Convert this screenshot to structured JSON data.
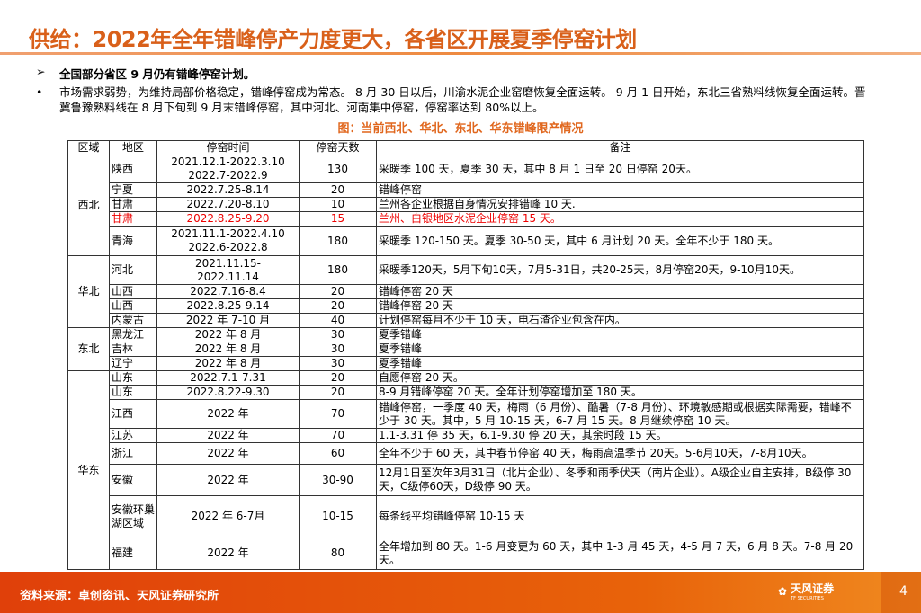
{
  "title": "供给：2022年全年错峰停产力度更大，各省区开展夏季停窑计划",
  "bullets": [
    {
      "marker": "➢",
      "text": "全国部分省区 9 月仍有错峰停窑计划。"
    },
    {
      "marker": "•",
      "text": "市场需求弱势，为维持局部价格稳定，错峰停窑成为常态。 8 月 30 日以后，川渝水泥企业窑磨恢复全面运转。 9 月 1 日开始，东北三省熟料线恢复全面运转。晋冀鲁豫熟料线在 8 月下旬到 9 月末错峰停窑，其中河北、河南集中停窑，停窑率达到 80%以上。"
    }
  ],
  "caption": "图：当前西北、华北、东北、华东错峰限产情况",
  "table": {
    "headers": [
      "区域",
      "地区",
      "停窑时间",
      "停窑天数",
      "备注"
    ],
    "groups": [
      "西北",
      "华北",
      "东北",
      "华东"
    ],
    "rows": [
      [
        "陕西",
        "2021.12.1-2022.3.10\n2022.7-2022.9",
        "130",
        "采暖季 100 天，夏季 30 天，其中 8 月 1 日至 20 日停窑 20天。"
      ],
      [
        "宁夏",
        "2022.7.25-8.14",
        "20",
        "错峰停窑"
      ],
      [
        "甘肃",
        "2022.7.20-8.10",
        "10",
        "兰州各企业根据自身情况安排错峰 10 天."
      ],
      [
        "甘肃",
        "2022.8.25-9.20",
        "15",
        "兰州、白银地区水泥企业停窑 15 天。"
      ],
      [
        "青海",
        "2021.11.1-2022.4.10\n2022.6-2022.8",
        "180",
        "采暖季 120-150 天。夏季 30-50 天，其中 6 月计划 20 天。全年不少于 180 天。"
      ],
      [
        "河北",
        "2021.11.15-\n2022.11.14",
        "180",
        "采暖季120天，5月下旬10天，7月5-31日，共20-25天，8月停窑20天，9-10月10天。"
      ],
      [
        "山西",
        "2022.7.16-8.4",
        "20",
        "错峰停窑 20 天"
      ],
      [
        "山西",
        "2022.8.25-9.14",
        "20",
        "错峰停窑 20 天"
      ],
      [
        "内蒙古",
        "2022 年 7-10 月",
        "40",
        "计划停窑每月不少于 10 天，电石渣企业包含在内。"
      ],
      [
        "黑龙江",
        "2022 年 8 月",
        "30",
        "夏季错峰"
      ],
      [
        "吉林",
        "2022 年 8 月",
        "30",
        "夏季错峰"
      ],
      [
        "辽宁",
        "2022 年 8 月",
        "30",
        "夏季错峰"
      ],
      [
        "山东",
        "2022.7.1-7.31",
        "20",
        "自愿停窑 20 天。"
      ],
      [
        "山东",
        "2022.8.22-9.30",
        "20",
        "8-9 月错峰停窑 20 天。全年计划停窑增加至 180 天。"
      ],
      [
        "江西",
        "2022 年",
        "70",
        "错峰停窑，一季度 40 天，梅雨（6 月份）、酷暑（7-8 月份）、环境敏感期或根据实际需要，错峰不少于 30 天。其中，5 月 10-15 天，6-7 月 15 天。8 月继续停窑 10 天。"
      ],
      [
        "江苏",
        "2022 年",
        "70",
        "1.1-3.31 停 35 天，6.1-9.30 停 20 天，其余时段 15 天。"
      ],
      [
        "浙江",
        "2022 年",
        "60",
        "全年不少于 60 天，其中春节停窑 40 天，梅雨高温季节 20天。5-6月10天，7-8月10天。"
      ],
      [
        "安徽",
        "2022 年",
        "30-90",
        "12月1日至次年3月31日（北片企业）、冬季和雨季伏天（南片企业）。A级企业自主安排，B级停 30 天，C级停60天，D级停 90 天。"
      ],
      [
        "安徽环巢湖区域",
        "2022 年 6-7月",
        "10-15",
        "每条线平均错峰停窑 10-15 天"
      ],
      [
        "福建",
        "2022 年",
        "80",
        "全年增加到 80 天。1-6 月变更为 60 天，其中 1-3 月 45 天，4-5 月 7 天，6 月 8 天。7-8 月 20 天。"
      ]
    ],
    "highlight_color": "#ee0000"
  },
  "footer": {
    "source": "资料来源：卓创资讯、天风证券研究所",
    "logo": "天风证券",
    "logo_sub": "TF SECURITIES",
    "page": "4"
  },
  "colors": {
    "title": "#d9601a",
    "footer": "#e45a0a"
  }
}
